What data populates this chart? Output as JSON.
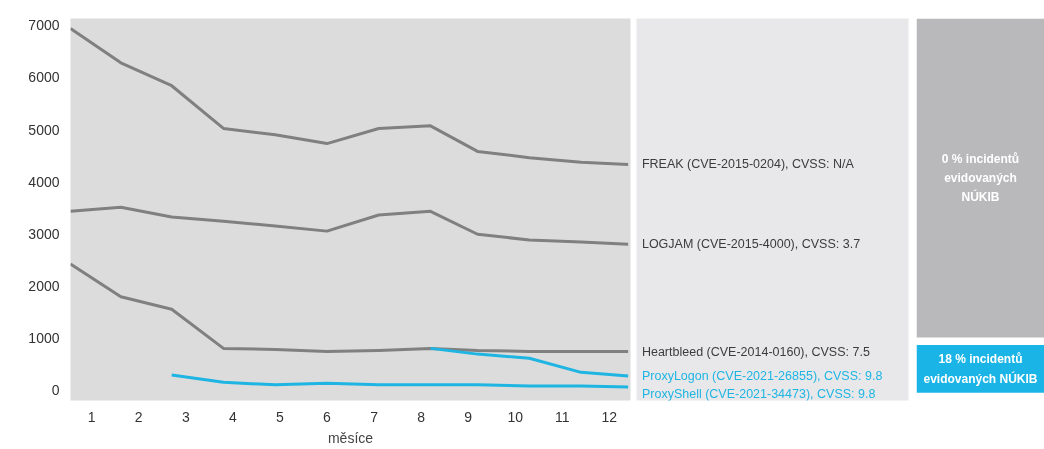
{
  "chart_data": {
    "type": "line",
    "xlabel": "měsíce",
    "xlim": [
      0.55,
      12.45
    ],
    "xticks": [
      1,
      2,
      3,
      4,
      5,
      6,
      7,
      8,
      9,
      10,
      11,
      12
    ],
    "ylim": [
      -200,
      7130
    ],
    "yticks": [
      0,
      1000,
      2000,
      3000,
      4000,
      5000,
      6000,
      7000
    ],
    "grid": false,
    "marker": "none",
    "line_style": "solid",
    "x": [
      0.55,
      1.62,
      2.7,
      3.8,
      4.9,
      6.0,
      7.1,
      8.2,
      9.2,
      10.3,
      11.4,
      12.4
    ],
    "series": [
      {
        "name": "FREAK (CVE-2015-0204), CVSS: N/A",
        "color": "#808080",
        "values": [
          6940,
          6280,
          5840,
          5020,
          4900,
          4730,
          5020,
          5070,
          4580,
          4460,
          4370,
          4330
        ]
      },
      {
        "name": "LOGJAM (CVE-2015-4000), CVSS: 3.7",
        "color": "#808080",
        "values": [
          3430,
          3510,
          3320,
          3240,
          3150,
          3050,
          3360,
          3430,
          2990,
          2880,
          2840,
          2800
        ]
      },
      {
        "name": "Heartbleed (CVE-2014-0160), CVSS: 7.5",
        "color": "#808080",
        "values": [
          2420,
          1790,
          1550,
          800,
          780,
          740,
          760,
          800,
          760,
          740,
          740,
          740
        ]
      },
      {
        "name": "ProxyLogon (CVE-2021-26855), CVSS: 9.8",
        "color": "#1fb5e3",
        "values": [
          null,
          null,
          null,
          null,
          null,
          null,
          null,
          800,
          690,
          610,
          340,
          270
        ]
      },
      {
        "name": "ProxyShell (CVE-2021-34473), CVSS: 9.8",
        "color": "#1fb5e3",
        "values": [
          null,
          null,
          290,
          150,
          100,
          130,
          100,
          100,
          100,
          80,
          80,
          60
        ]
      }
    ],
    "annotations": [
      "0 % incidentů evidovaných NÚKIB",
      "18 % incidentů evidovaných NÚKIB"
    ]
  }
}
